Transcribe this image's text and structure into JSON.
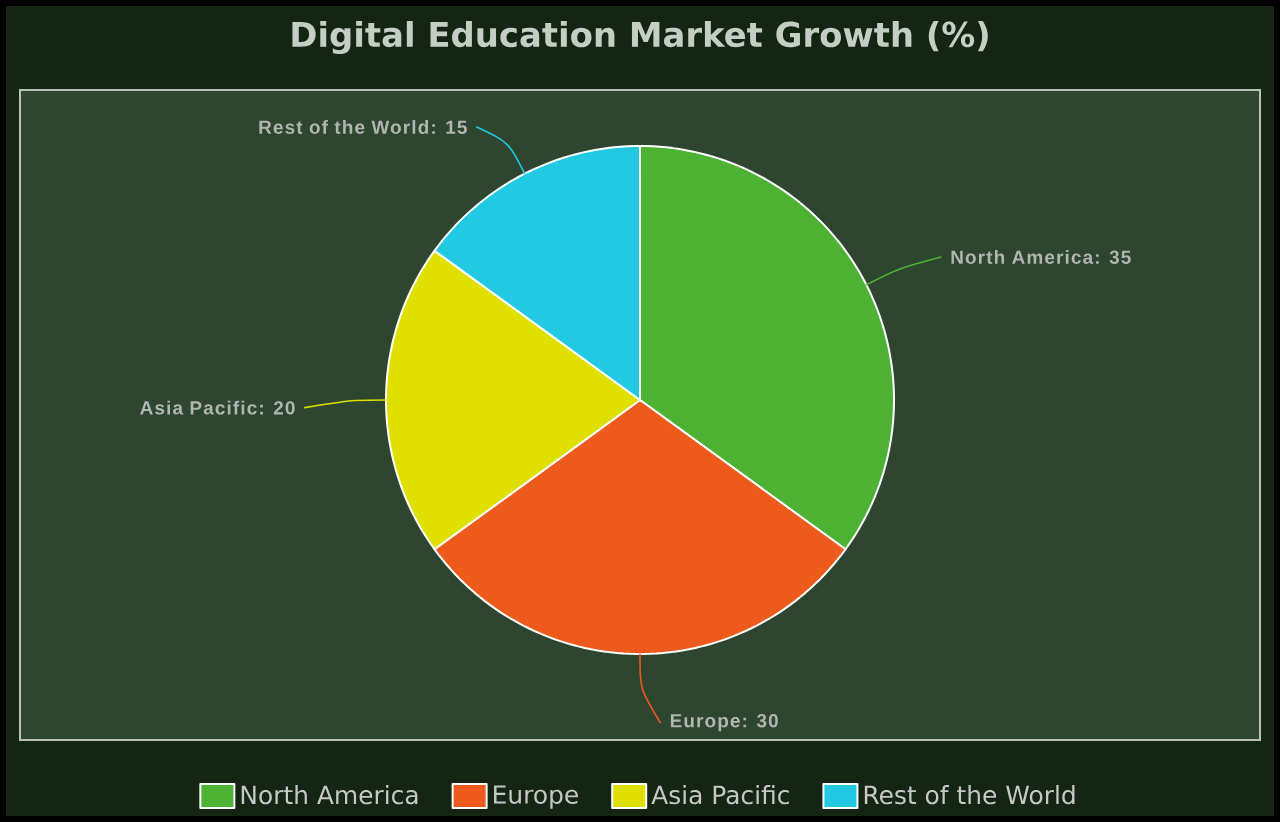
{
  "chart_data": {
    "type": "pie",
    "title": "Digital Education Market Growth (%)",
    "categories": [
      "North America",
      "Europe",
      "Asia Pacific",
      "Rest of the World"
    ],
    "values": [
      35,
      30,
      20,
      15
    ],
    "value_labels": [
      "North America: 35",
      "Europe: 30",
      "Asia Pacific: 20",
      "Rest of the World: 15"
    ],
    "colors": [
      "#4db133",
      "#ee5a1c",
      "#dfe000",
      "#22c9e3"
    ],
    "legend": "bottom"
  }
}
